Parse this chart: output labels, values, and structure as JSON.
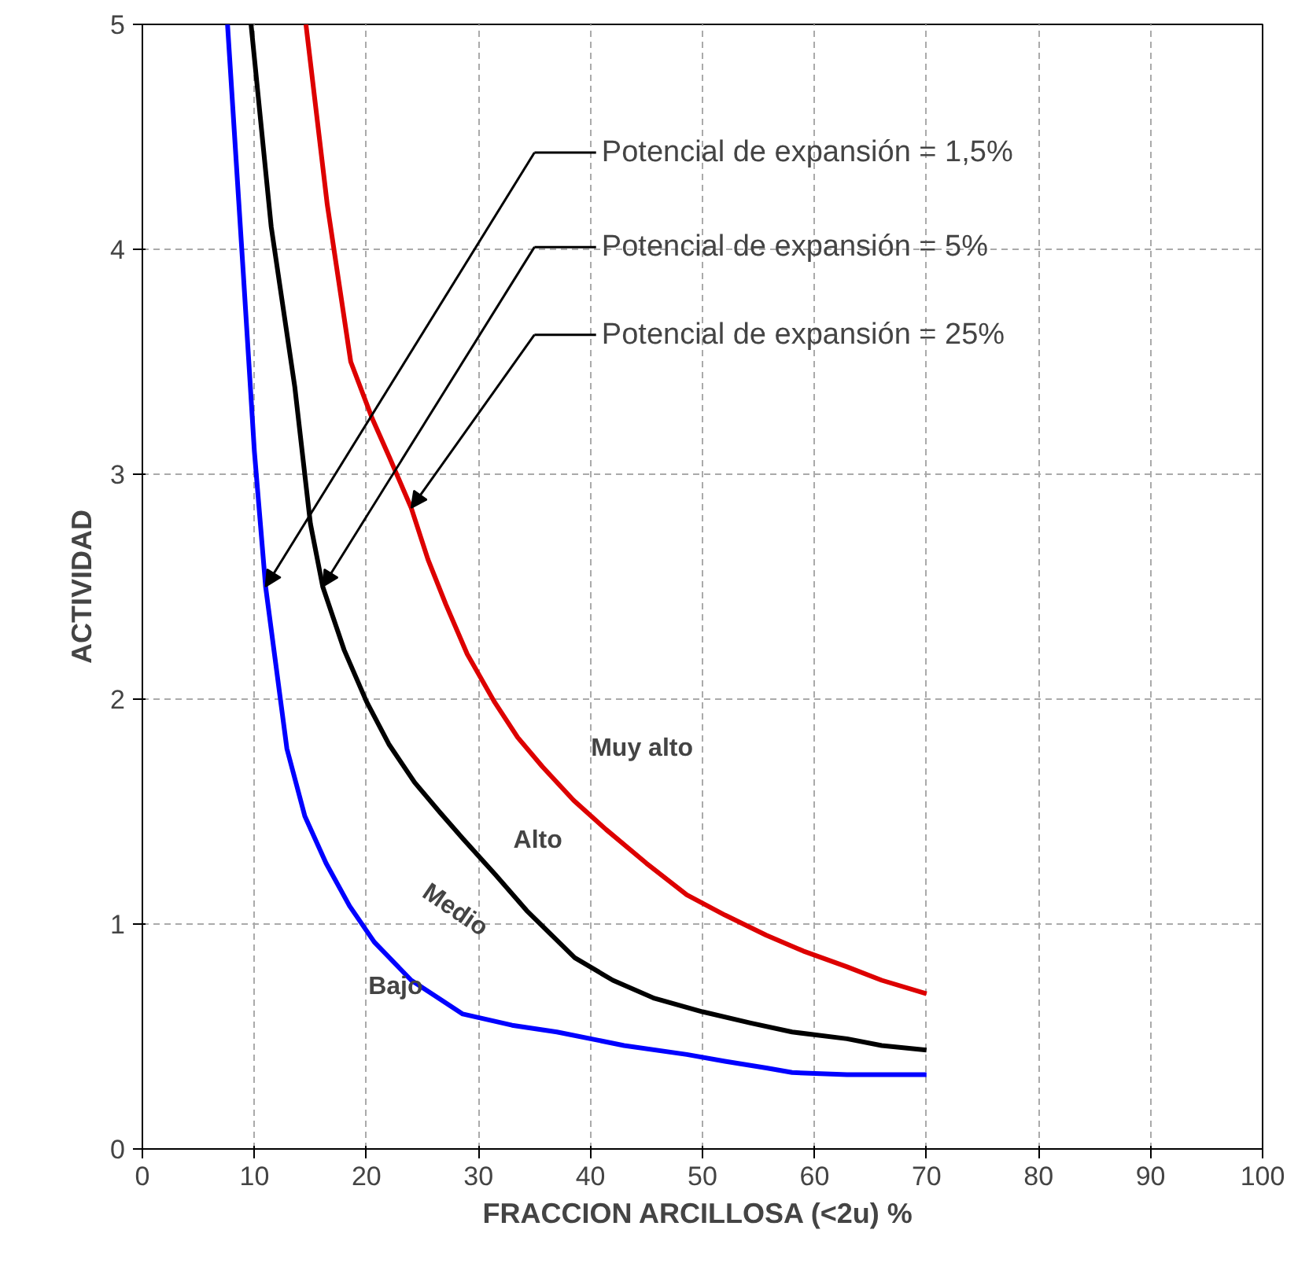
{
  "chart_data": {
    "type": "line",
    "xlabel": "FRACCION ARCILLOSA (<2u)  %",
    "ylabel": "ACTIVIDAD",
    "xlim": [
      0,
      100
    ],
    "ylim": [
      0,
      5
    ],
    "xticks": [
      0,
      10,
      20,
      30,
      40,
      50,
      60,
      70,
      80,
      90,
      100
    ],
    "yticks": [
      0,
      1,
      2,
      3,
      4,
      5
    ],
    "grid": true,
    "line_style": "solid",
    "series": [
      {
        "color": "#0000ff",
        "x": [
          7.6,
          9,
          10,
          11,
          12.9,
          14.5,
          16.4,
          18.5,
          20.7,
          24,
          28.6,
          33,
          37,
          43,
          48.6,
          52,
          55.7,
          58,
          62.9,
          66,
          70
        ],
        "values": [
          5,
          3.9,
          3.1,
          2.5,
          1.78,
          1.48,
          1.27,
          1.08,
          0.92,
          0.75,
          0.6,
          0.55,
          0.52,
          0.46,
          0.42,
          0.39,
          0.36,
          0.34,
          0.33,
          0.33,
          0.33
        ]
      },
      {
        "color": "#000000",
        "x": [
          9.7,
          11.5,
          13.6,
          15,
          16.1,
          18,
          20,
          22,
          24.3,
          26.5,
          28.6,
          31.5,
          34.3,
          38.6,
          42,
          45.7,
          50,
          54.3,
          58,
          62.9,
          66,
          70
        ],
        "values": [
          5,
          4.1,
          3.39,
          2.78,
          2.5,
          2.22,
          1.99,
          1.8,
          1.63,
          1.5,
          1.38,
          1.22,
          1.06,
          0.85,
          0.75,
          0.67,
          0.61,
          0.56,
          0.52,
          0.49,
          0.46,
          0.44
        ]
      },
      {
        "color": "#dd0000",
        "x": [
          14.6,
          16.5,
          18.6,
          20.5,
          22.1,
          24,
          25.5,
          27.1,
          29,
          31.4,
          33.5,
          35.7,
          38.5,
          41.4,
          45,
          48.6,
          52,
          55.7,
          59,
          62.9,
          66,
          70
        ],
        "values": [
          5,
          4.2,
          3.5,
          3.25,
          3.07,
          2.85,
          2.62,
          2.42,
          2.2,
          1.99,
          1.83,
          1.7,
          1.55,
          1.42,
          1.27,
          1.13,
          1.04,
          0.95,
          0.88,
          0.81,
          0.75,
          0.69
        ]
      }
    ],
    "annotations": [
      "Potencial de expansión = 1,5%",
      "Potencial de expansión = 5%",
      "Potencial de expansión = 25%",
      "Muy alto",
      "Alto",
      "Medio",
      "Bajo"
    ]
  }
}
